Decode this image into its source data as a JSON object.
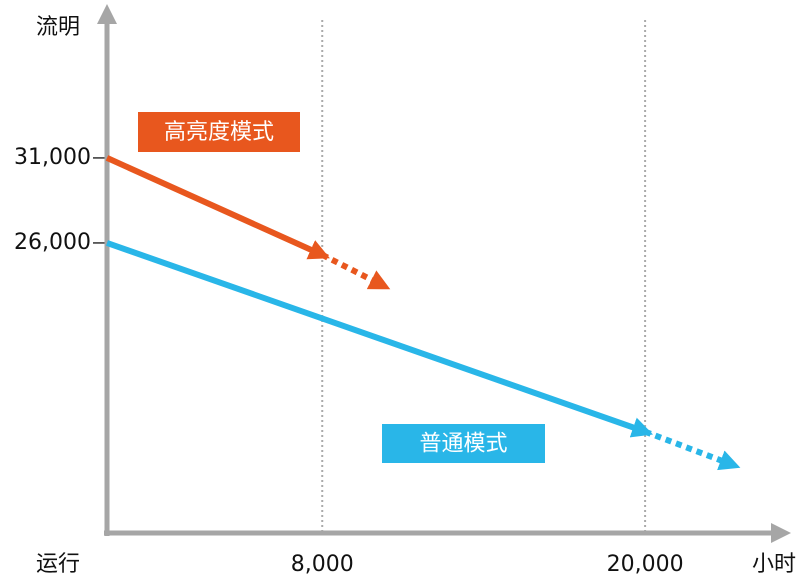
{
  "chart_data": {
    "type": "line",
    "y_label": "流明",
    "x_label_start": "运行",
    "x_label": "小时",
    "xlim": [
      0,
      25200
    ],
    "ylim": [
      8940,
      39700
    ],
    "xticks": [
      {
        "value": 8000,
        "label": "8,000"
      },
      {
        "value": 20000,
        "label": "20,000"
      }
    ],
    "yticks": [
      {
        "value": 31000,
        "label": "31,000"
      },
      {
        "value": 26000,
        "label": "26,000"
      }
    ],
    "grid": true,
    "series": [
      {
        "name": "高亮度模式",
        "color": "#e8571e",
        "x": [
          0,
          8000,
          10250
        ],
        "values": [
          31000,
          25300,
          23500
        ],
        "line_style": [
          "solid",
          "dotted"
        ]
      },
      {
        "name": "普通模式",
        "color": "#29b6e8",
        "x": [
          0,
          20000,
          23250
        ],
        "values": [
          26000,
          14900,
          12950
        ],
        "line_style": [
          "solid",
          "dotted"
        ]
      }
    ]
  }
}
